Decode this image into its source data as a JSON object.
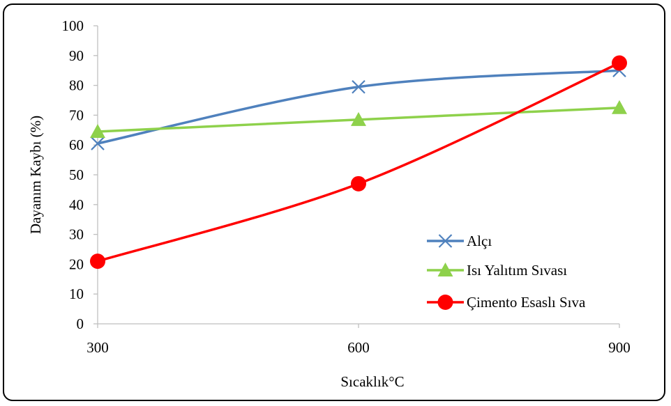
{
  "chart_data": {
    "type": "line",
    "x": [
      300,
      600,
      900
    ],
    "series": [
      {
        "name": "Alçı",
        "values": [
          60.5,
          79.5,
          85
        ],
        "color": "#4F81BD",
        "marker": "x"
      },
      {
        "name": "Isı Yalıtım Sıvası",
        "values": [
          64.5,
          68.5,
          72.5
        ],
        "color": "#8ED14B",
        "marker": "triangle"
      },
      {
        "name": "Çimento Esaslı Sıva",
        "values": [
          21,
          47,
          87.5
        ],
        "color": "#FF0000",
        "marker": "circle"
      }
    ],
    "xlabel": "Sıcaklık°C",
    "ylabel": "Dayanım Kaybı (%)",
    "ylim": [
      0,
      100
    ],
    "yticks": [
      0,
      10,
      20,
      30,
      40,
      50,
      60,
      70,
      80,
      90,
      100
    ],
    "xticks": [
      "300",
      "600",
      "900"
    ],
    "grid": false,
    "legend_position": "right"
  }
}
